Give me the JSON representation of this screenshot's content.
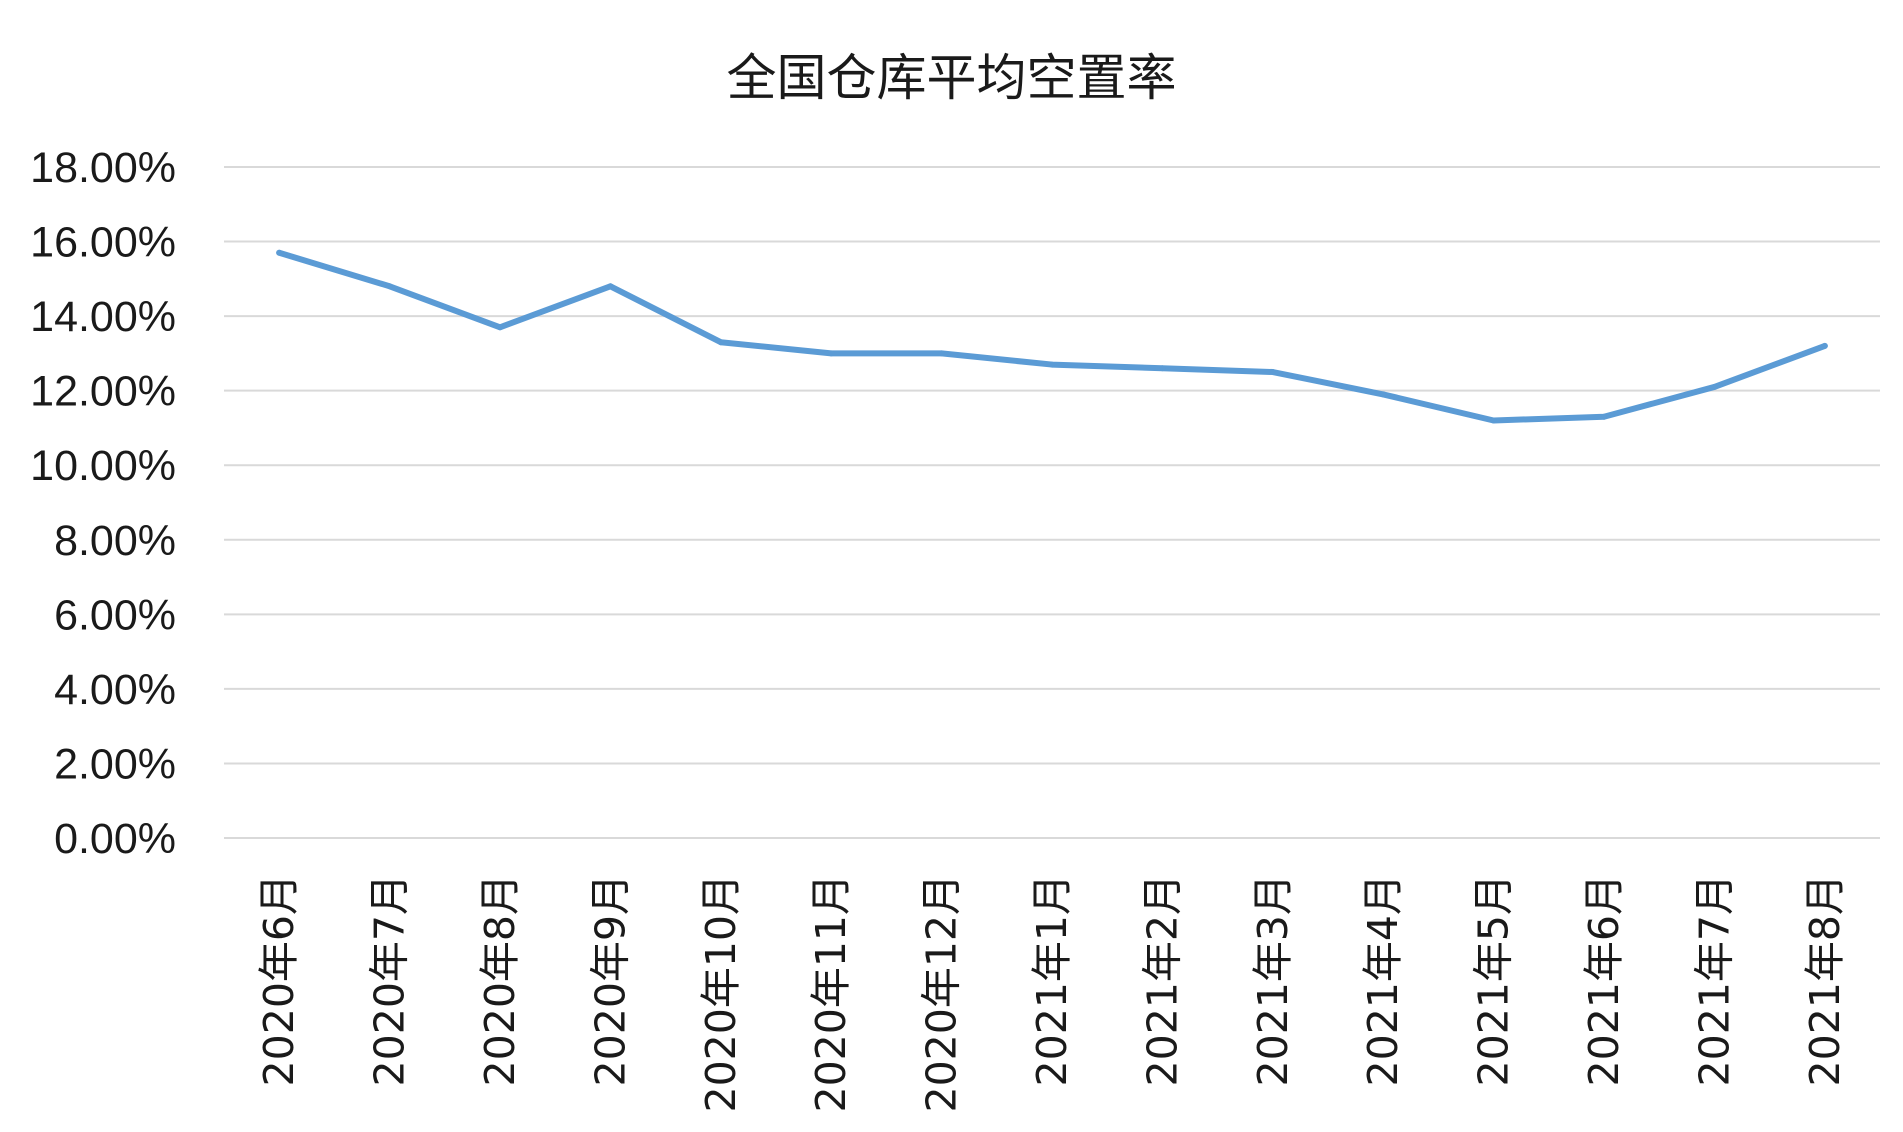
{
  "chart_data": {
    "type": "line",
    "title": "全国仓库平均空置率",
    "xlabel": "",
    "ylabel": "",
    "categories": [
      "2020年6月",
      "2020年7月",
      "2020年8月",
      "2020年9月",
      "2020年10月",
      "2020年11月",
      "2020年12月",
      "2021年1月",
      "2021年2月",
      "2021年3月",
      "2021年4月",
      "2021年5月",
      "2021年6月",
      "2021年7月",
      "2021年8月"
    ],
    "series": [
      {
        "values": [
          0.157,
          0.148,
          0.137,
          0.148,
          0.133,
          0.13,
          0.13,
          0.127,
          0.126,
          0.125,
          0.119,
          0.112,
          0.113,
          0.121,
          0.132
        ]
      }
    ],
    "y_ticks": [
      "0.00%",
      "2.00%",
      "4.00%",
      "6.00%",
      "8.00%",
      "10.00%",
      "12.00%",
      "14.00%",
      "16.00%",
      "18.00%"
    ],
    "ylim": [
      0,
      0.18
    ],
    "grid": true,
    "colors": {
      "line": "#5b9bd5",
      "grid": "#d9d9d9"
    }
  }
}
